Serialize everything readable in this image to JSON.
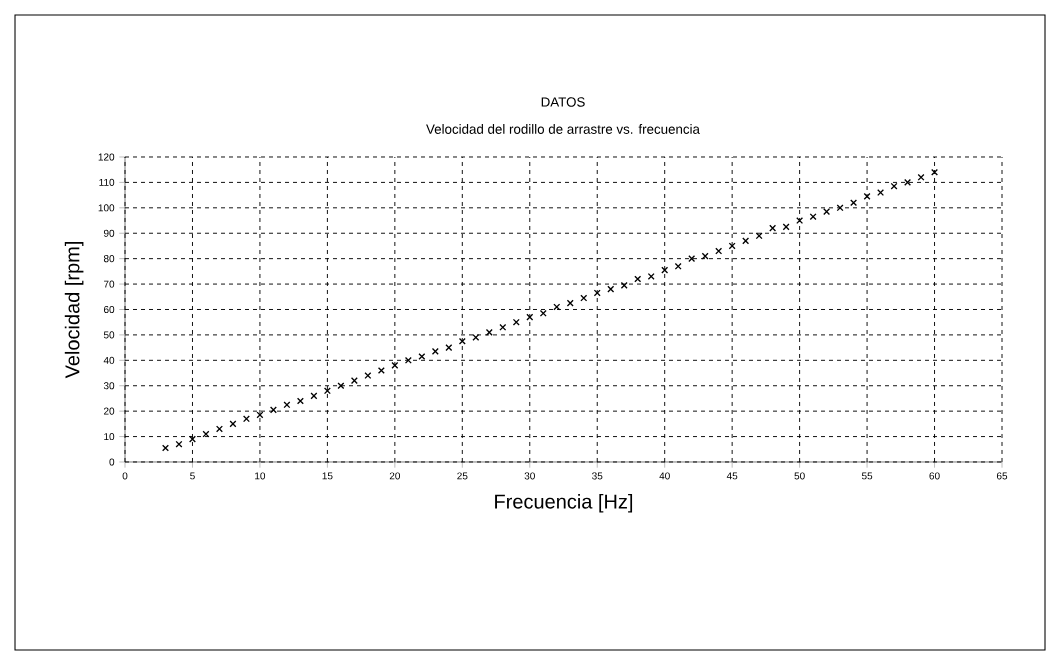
{
  "chart_data": {
    "type": "scatter",
    "title": "DATOS",
    "subtitle": "Velocidad del rodillo de arrastre vs. frecuencia",
    "xlabel": "Frecuencia [Hz]",
    "ylabel": "Velocidad [rpm]",
    "x": [
      3,
      4,
      5,
      6,
      7,
      8,
      9,
      10,
      11,
      12,
      13,
      14,
      15,
      16,
      17,
      18,
      19,
      20,
      21,
      22,
      23,
      24,
      25,
      26,
      27,
      28,
      29,
      30,
      31,
      32,
      33,
      34,
      35,
      36,
      37,
      38,
      39,
      40,
      41,
      42,
      43,
      44,
      45,
      46,
      47,
      48,
      49,
      50,
      51,
      52,
      53,
      54,
      55,
      56,
      57,
      58,
      59,
      60
    ],
    "values": [
      5.5,
      7,
      9,
      11,
      13,
      15,
      17,
      18.5,
      20.5,
      22.5,
      24,
      26,
      28,
      30,
      32,
      34,
      36,
      38,
      40,
      41.5,
      43.5,
      45,
      47.5,
      49,
      51,
      53,
      55,
      57,
      58.5,
      61,
      62.5,
      64.5,
      66.5,
      68,
      69.5,
      72,
      73,
      75.5,
      77,
      80,
      81,
      83,
      85,
      87,
      89,
      92,
      92.5,
      95,
      96.5,
      98.5,
      100,
      102,
      104.5,
      106,
      108.5,
      110,
      112,
      114
    ],
    "color": "#000000",
    "marker": "cross",
    "grid": true,
    "xlim": [
      0,
      65
    ],
    "ylim": [
      0,
      120
    ],
    "xticks": [
      0,
      5,
      10,
      15,
      20,
      25,
      30,
      35,
      40,
      45,
      50,
      55,
      60,
      65
    ],
    "yticks": [
      0,
      10,
      20,
      30,
      40,
      50,
      60,
      70,
      80,
      90,
      100,
      110,
      120
    ]
  }
}
